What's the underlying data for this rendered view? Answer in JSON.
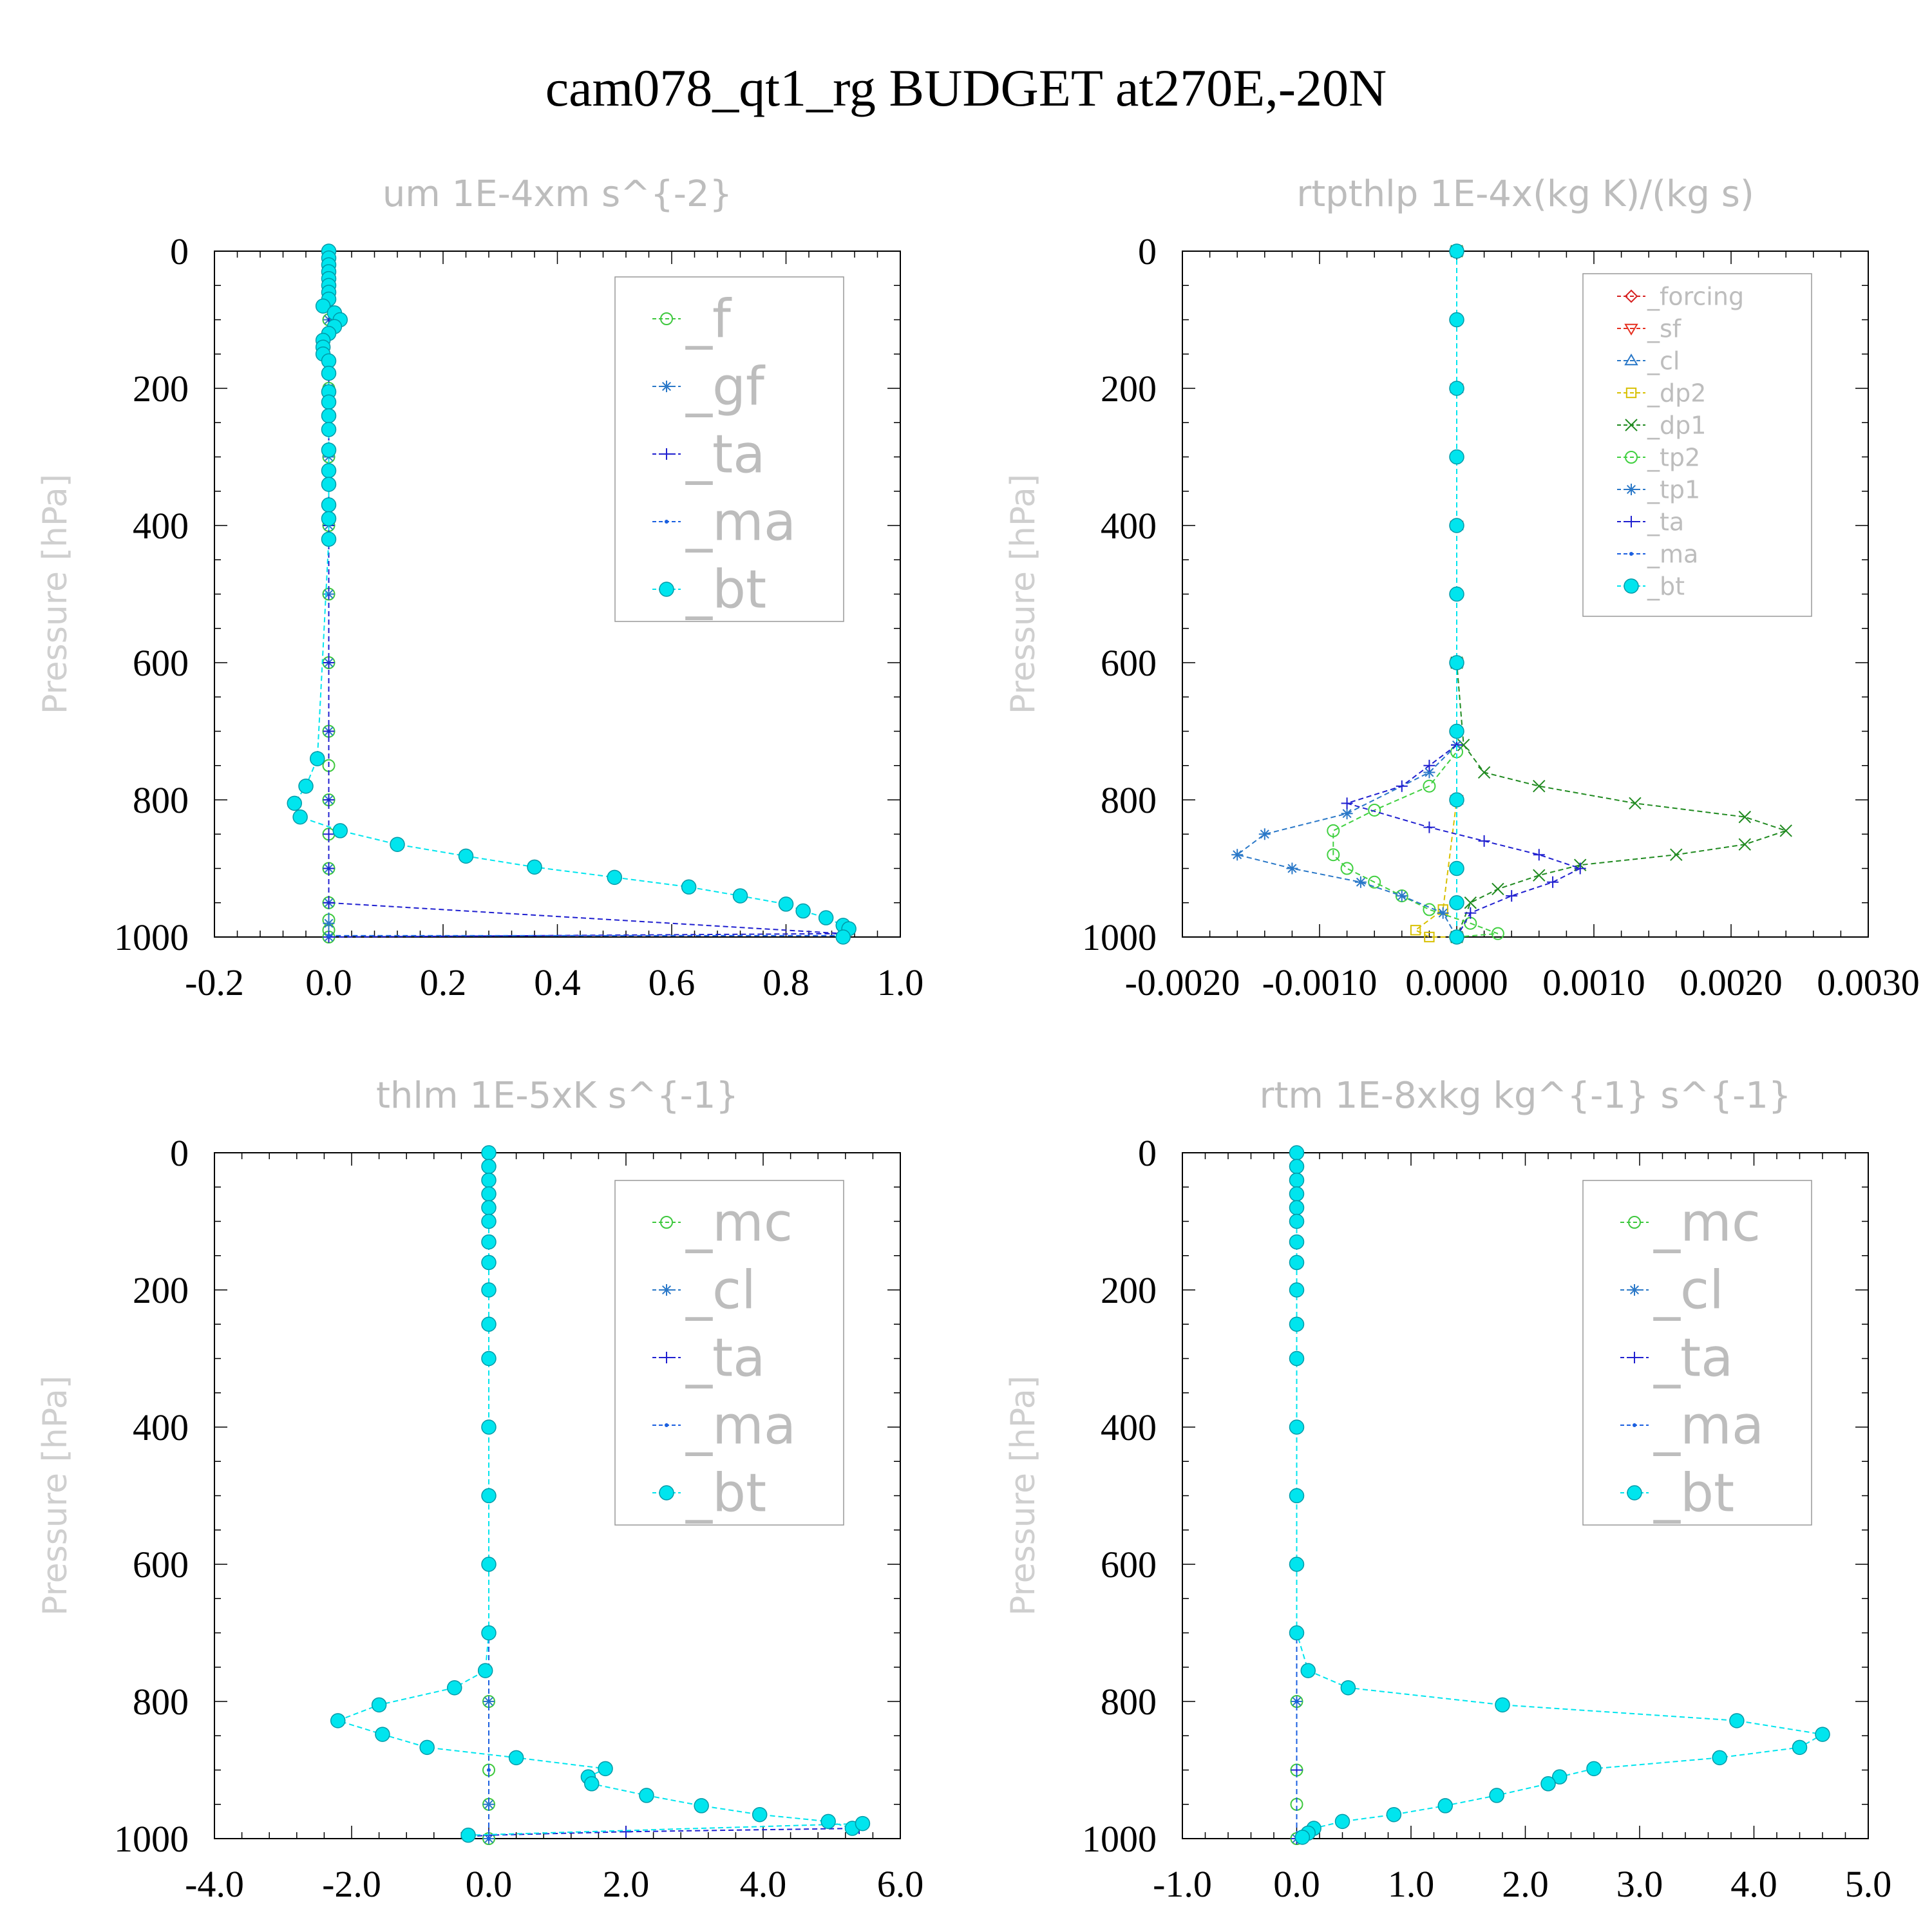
{
  "figure_title": "cam078_qt1_rg  BUDGET at270E,-20N",
  "colors": {
    "_f": "#3ec83e",
    "_gf": "#2a78c8",
    "_ta": "#2020d0",
    "_ma": "#1a5fe0",
    "_bt": "#00e5ee",
    "_mc": "#3ec83e",
    "_cl": "#2a78c8",
    "_forcing": "#d62020",
    "_sf": "#e63020",
    "_dp2": "#d8c000",
    "_dp1": "#208a20",
    "_tp2": "#40d040",
    "_tp1": "#2a78c8"
  },
  "chart_data": [
    {
      "type": "line",
      "title": "um  1E-4xm s^{-2}",
      "ylabel": "Pressure [hPa]",
      "xlim": [
        -0.2,
        1.0
      ],
      "ylim": [
        1000,
        0
      ],
      "xticks": [
        "-0.2",
        "0.0",
        "0.2",
        "0.4",
        "0.6",
        "0.8",
        "1.0"
      ],
      "yticks": [
        "0",
        "200",
        "400",
        "600",
        "800",
        "1000"
      ],
      "legend_position": "top-right",
      "legend": [
        "_f",
        "_gf",
        "_ta",
        "_ma",
        "_bt"
      ],
      "series": [
        {
          "name": "_f",
          "marker": "circle",
          "x": [
            0,
            0,
            0,
            0,
            0,
            0,
            0,
            0,
            0,
            0,
            0,
            0,
            0,
            0,
            0,
            0
          ],
          "y": [
            0,
            100,
            200,
            300,
            400,
            500,
            600,
            700,
            750,
            800,
            850,
            900,
            950,
            975,
            990,
            1000
          ]
        },
        {
          "name": "_gf",
          "marker": "star",
          "x": [
            0,
            0,
            0,
            0,
            0,
            0,
            0,
            0,
            0,
            0,
            0,
            0,
            0
          ],
          "y": [
            0,
            100,
            200,
            300,
            400,
            500,
            600,
            700,
            800,
            900,
            950,
            980,
            1000
          ]
        },
        {
          "name": "_ta",
          "marker": "plus",
          "x": [
            0,
            0,
            0,
            0,
            0,
            0,
            0,
            0,
            0,
            0.9,
            0
          ],
          "y": [
            0,
            200,
            400,
            600,
            700,
            800,
            850,
            900,
            950,
            995,
            1000
          ]
        },
        {
          "name": "_ma",
          "marker": "dot",
          "x": [
            0.9,
            0
          ],
          "y": [
            998,
            998
          ]
        },
        {
          "name": "_bt",
          "marker": "filled-circle",
          "x": [
            0,
            0,
            0,
            0,
            0,
            0,
            0,
            0,
            -0.01,
            0.01,
            0.02,
            0.01,
            0,
            -0.01,
            -0.01,
            -0.01,
            0,
            0,
            0,
            0,
            0,
            0,
            0,
            0,
            0,
            0,
            0,
            0,
            -0.02,
            -0.04,
            -0.06,
            -0.05,
            0.02,
            0.12,
            0.24,
            0.36,
            0.5,
            0.63,
            0.72,
            0.8,
            0.83,
            0.87,
            0.9,
            0.91,
            0.9
          ],
          "y": [
            0,
            10,
            20,
            30,
            40,
            50,
            60,
            70,
            80,
            90,
            100,
            110,
            120,
            130,
            140,
            150,
            160,
            178,
            205,
            220,
            240,
            260,
            290,
            320,
            340,
            370,
            390,
            420,
            740,
            780,
            805,
            825,
            845,
            865,
            882,
            898,
            913,
            927,
            940,
            952,
            962,
            972,
            983,
            988,
            1000
          ]
        }
      ]
    },
    {
      "type": "line",
      "title": "rtpthlp  1E-4x(kg K)/(kg s)",
      "ylabel": "Pressure [hPa]",
      "xlim": [
        -0.002,
        0.003
      ],
      "ylim": [
        1000,
        0
      ],
      "xticks": [
        "-0.0020",
        "-0.0010",
        "0.0000",
        "0.0010",
        "0.0020",
        "0.0030"
      ],
      "yticks": [
        "0",
        "200",
        "400",
        "600",
        "800",
        "1000"
      ],
      "legend_position": "top-right",
      "legend": [
        "_forcing",
        "_sf",
        "_cl",
        "_dp2",
        "_dp1",
        "_tp2",
        "_tp1",
        "_ta",
        "_ma",
        "_bt"
      ],
      "series": [
        {
          "name": "_forcing",
          "marker": "diamond",
          "x": [
            0,
            0,
            0,
            0,
            0,
            0,
            0,
            0,
            0,
            0,
            0
          ],
          "y": [
            0,
            100,
            200,
            300,
            400,
            500,
            600,
            700,
            800,
            900,
            1000
          ]
        },
        {
          "name": "_sf",
          "marker": "triangle-down",
          "x": [
            0,
            0,
            0,
            0,
            0,
            0
          ],
          "y": [
            0,
            200,
            400,
            600,
            800,
            1000
          ]
        },
        {
          "name": "_cl",
          "marker": "triangle-up",
          "x": [
            0,
            0,
            0,
            0,
            0,
            0
          ],
          "y": [
            0,
            200,
            400,
            600,
            800,
            1000
          ]
        },
        {
          "name": "_dp2",
          "marker": "square",
          "x": [
            0,
            0,
            0,
            -0.0001,
            -0.0003,
            -0.0002,
            0
          ],
          "y": [
            0,
            400,
            800,
            960,
            990,
            1000,
            1000
          ]
        },
        {
          "name": "_dp1",
          "marker": "x",
          "x": [
            0,
            0,
            5e-05,
            0.0002,
            0.0006,
            0.0013,
            0.0021,
            0.0024,
            0.0021,
            0.0016,
            0.0009,
            0.0006,
            0.0003,
            0.0001,
            0
          ],
          "y": [
            0,
            600,
            720,
            760,
            780,
            805,
            825,
            845,
            865,
            880,
            895,
            910,
            930,
            950,
            1000
          ]
        },
        {
          "name": "_tp2",
          "marker": "circle",
          "x": [
            0,
            0,
            -0.0002,
            -0.0006,
            -0.0009,
            -0.0009,
            -0.0008,
            -0.0006,
            -0.0004,
            -0.0002,
            0.0001,
            0.0003,
            0
          ],
          "y": [
            0,
            730,
            780,
            815,
            845,
            880,
            900,
            920,
            940,
            960,
            980,
            995,
            1000
          ]
        },
        {
          "name": "_tp1",
          "marker": "star",
          "x": [
            0,
            0,
            -0.0002,
            -0.0008,
            -0.0014,
            -0.0016,
            -0.0012,
            -0.0007,
            -0.0004,
            -0.0001,
            0
          ],
          "y": [
            0,
            720,
            760,
            820,
            850,
            880,
            900,
            920,
            940,
            965,
            1000
          ]
        },
        {
          "name": "_ta",
          "marker": "plus",
          "x": [
            0,
            0,
            -0.0002,
            -0.0004,
            -0.0008,
            -0.0002,
            0.0002,
            0.0006,
            0.0009,
            0.0007,
            0.0004,
            0.0001,
            0
          ],
          "y": [
            0,
            720,
            750,
            780,
            805,
            840,
            860,
            880,
            900,
            920,
            940,
            965,
            1000
          ]
        },
        {
          "name": "_ma",
          "marker": "dot",
          "x": [
            0,
            0
          ],
          "y": [
            0,
            1000
          ]
        },
        {
          "name": "_bt",
          "marker": "filled-circle",
          "x": [
            0,
            0,
            0,
            0,
            0,
            0,
            0,
            0,
            0,
            0,
            0,
            0
          ],
          "y": [
            0,
            100,
            200,
            300,
            400,
            500,
            600,
            700,
            800,
            900,
            950,
            1000
          ]
        }
      ]
    },
    {
      "type": "line",
      "title": "thlm  1E-5xK s^{-1}",
      "ylabel": "Pressure [hPa]",
      "xlim": [
        -4.0,
        6.0
      ],
      "ylim": [
        1000,
        0
      ],
      "xticks": [
        "-4.0",
        "-2.0",
        "0.0",
        "2.0",
        "4.0",
        "6.0"
      ],
      "yticks": [
        "0",
        "200",
        "400",
        "600",
        "800",
        "1000"
      ],
      "legend_position": "top-right",
      "legend": [
        "_mc",
        "_cl",
        "_ta",
        "_ma",
        "_bt"
      ],
      "series": [
        {
          "name": "_mc",
          "marker": "circle",
          "x": [
            0,
            0,
            0,
            0,
            0,
            0,
            0,
            0,
            0,
            0,
            0,
            0
          ],
          "y": [
            0,
            100,
            200,
            300,
            400,
            500,
            600,
            700,
            800,
            900,
            950,
            1000
          ]
        },
        {
          "name": "_cl",
          "marker": "star",
          "x": [
            0,
            0,
            0,
            0,
            0,
            0,
            0
          ],
          "y": [
            0,
            200,
            400,
            600,
            800,
            950,
            1000
          ]
        },
        {
          "name": "_ta",
          "marker": "plus",
          "x": [
            5.4,
            2.0,
            0,
            -0.3
          ],
          "y": [
            985,
            990,
            995,
            997
          ]
        },
        {
          "name": "_ma",
          "marker": "dot",
          "x": [
            0,
            0,
            0
          ],
          "y": [
            0,
            900,
            1000
          ]
        },
        {
          "name": "_bt",
          "marker": "filled-circle",
          "x": [
            0,
            0,
            0,
            0,
            0,
            0,
            0,
            0,
            0,
            0,
            0,
            0,
            0,
            0,
            0,
            -0.05,
            -0.5,
            -1.6,
            -2.2,
            -1.55,
            -0.9,
            0.4,
            1.7,
            1.45,
            1.5,
            2.3,
            3.1,
            3.95,
            4.95,
            5.3,
            5.45,
            -0.3
          ],
          "y": [
            0,
            20,
            40,
            60,
            80,
            100,
            130,
            160,
            200,
            250,
            300,
            400,
            500,
            600,
            700,
            755,
            780,
            805,
            828,
            848,
            867,
            882,
            898,
            910,
            920,
            937,
            952,
            965,
            975,
            985,
            978,
            995
          ]
        }
      ]
    },
    {
      "type": "line",
      "title": "rtm  1E-8xkg kg^{-1} s^{-1}",
      "ylabel": "Pressure [hPa]",
      "xlim": [
        -1.0,
        5.0
      ],
      "ylim": [
        1000,
        0
      ],
      "xticks": [
        "-1.0",
        "0.0",
        "1.0",
        "2.0",
        "3.0",
        "4.0",
        "5.0"
      ],
      "yticks": [
        "0",
        "200",
        "400",
        "600",
        "800",
        "1000"
      ],
      "legend_position": "top-right",
      "legend": [
        "_mc",
        "_cl",
        "_ta",
        "_ma",
        "_bt"
      ],
      "series": [
        {
          "name": "_mc",
          "marker": "circle",
          "x": [
            0,
            0,
            0,
            0,
            0,
            0,
            0,
            0,
            0,
            0,
            0,
            0
          ],
          "y": [
            0,
            100,
            200,
            300,
            400,
            500,
            600,
            700,
            800,
            900,
            950,
            1000
          ]
        },
        {
          "name": "_cl",
          "marker": "star",
          "x": [
            0,
            0,
            0,
            0,
            0,
            0
          ],
          "y": [
            0,
            200,
            400,
            600,
            800,
            1000
          ]
        },
        {
          "name": "_ta",
          "marker": "plus",
          "x": [
            0,
            0,
            0,
            0
          ],
          "y": [
            0,
            500,
            900,
            1000
          ]
        },
        {
          "name": "_ma",
          "marker": "dot",
          "x": [
            0,
            0,
            0
          ],
          "y": [
            0,
            800,
            1000
          ]
        },
        {
          "name": "_bt",
          "marker": "filled-circle",
          "x": [
            0,
            0,
            0,
            0,
            0,
            0,
            0,
            0,
            0,
            0,
            0,
            0,
            0,
            0,
            0,
            0.1,
            0.45,
            1.8,
            3.85,
            4.6,
            4.4,
            3.7,
            2.6,
            2.3,
            2.2,
            1.75,
            1.3,
            0.85,
            0.4,
            0.15,
            0.1,
            0.05
          ],
          "y": [
            0,
            20,
            40,
            60,
            80,
            100,
            130,
            160,
            200,
            250,
            300,
            400,
            500,
            600,
            700,
            755,
            780,
            805,
            828,
            848,
            867,
            882,
            898,
            910,
            920,
            937,
            952,
            965,
            975,
            985,
            992,
            998
          ]
        }
      ]
    }
  ]
}
